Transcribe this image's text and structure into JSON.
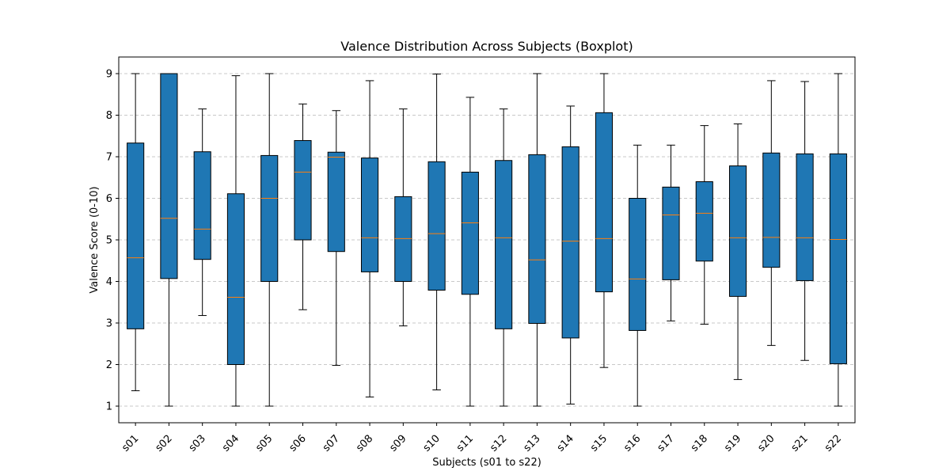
{
  "chart_data": {
    "type": "boxplot",
    "title": "Valence Distribution Across Subjects (Boxplot)",
    "xlabel": "Subjects (s01 to s22)",
    "ylabel": "Valence Score (0-10)",
    "ylim": [
      0.6,
      9.4
    ],
    "yticks": [
      1,
      2,
      3,
      4,
      5,
      6,
      7,
      8,
      9
    ],
    "grid": "y-dashed",
    "colors": {
      "box": "#1f77b4",
      "median": "#ff7f0e",
      "grid": "#c8c8c8"
    },
    "categories": [
      "s01",
      "s02",
      "s03",
      "s04",
      "s05",
      "s06",
      "s07",
      "s08",
      "s09",
      "s10",
      "s11",
      "s12",
      "s13",
      "s14",
      "s15",
      "s16",
      "s17",
      "s18",
      "s19",
      "s20",
      "s21",
      "s22"
    ],
    "boxes": [
      {
        "whislo": 1.37,
        "q1": 2.86,
        "med": 4.57,
        "q3": 7.33,
        "whishi": 9.0
      },
      {
        "whislo": 1.0,
        "q1": 4.07,
        "med": 5.52,
        "q3": 9.0,
        "whishi": 9.0
      },
      {
        "whislo": 3.18,
        "q1": 4.53,
        "med": 5.26,
        "q3": 7.12,
        "whishi": 8.15
      },
      {
        "whislo": 1.0,
        "q1": 2.0,
        "med": 3.62,
        "q3": 6.11,
        "whishi": 8.95
      },
      {
        "whislo": 1.0,
        "q1": 4.0,
        "med": 6.0,
        "q3": 7.03,
        "whishi": 9.0
      },
      {
        "whislo": 3.32,
        "q1": 5.0,
        "med": 6.63,
        "q3": 7.39,
        "whishi": 8.27
      },
      {
        "whislo": 1.98,
        "q1": 4.72,
        "med": 6.99,
        "q3": 7.11,
        "whishi": 8.11
      },
      {
        "whislo": 1.22,
        "q1": 4.23,
        "med": 5.05,
        "q3": 6.97,
        "whishi": 8.83
      },
      {
        "whislo": 2.93,
        "q1": 4.0,
        "med": 5.03,
        "q3": 6.04,
        "whishi": 8.15
      },
      {
        "whislo": 1.39,
        "q1": 3.79,
        "med": 5.15,
        "q3": 6.88,
        "whishi": 8.99
      },
      {
        "whislo": 1.0,
        "q1": 3.69,
        "med": 5.41,
        "q3": 6.63,
        "whishi": 8.43
      },
      {
        "whislo": 1.0,
        "q1": 2.86,
        "med": 5.05,
        "q3": 6.91,
        "whishi": 8.15
      },
      {
        "whislo": 1.0,
        "q1": 2.99,
        "med": 4.52,
        "q3": 7.05,
        "whishi": 9.0
      },
      {
        "whislo": 1.05,
        "q1": 2.64,
        "med": 4.97,
        "q3": 7.24,
        "whishi": 8.22
      },
      {
        "whislo": 1.93,
        "q1": 3.75,
        "med": 5.03,
        "q3": 8.06,
        "whishi": 9.0
      },
      {
        "whislo": 1.0,
        "q1": 2.82,
        "med": 4.06,
        "q3": 6.0,
        "whishi": 7.28
      },
      {
        "whislo": 3.05,
        "q1": 4.04,
        "med": 5.6,
        "q3": 6.27,
        "whishi": 7.28
      },
      {
        "whislo": 2.97,
        "q1": 4.49,
        "med": 5.64,
        "q3": 6.4,
        "whishi": 7.75
      },
      {
        "whislo": 1.64,
        "q1": 3.64,
        "med": 5.05,
        "q3": 6.78,
        "whishi": 7.79
      },
      {
        "whislo": 2.46,
        "q1": 4.34,
        "med": 5.06,
        "q3": 7.09,
        "whishi": 8.83
      },
      {
        "whislo": 2.1,
        "q1": 4.02,
        "med": 5.05,
        "q3": 7.07,
        "whishi": 8.81
      },
      {
        "whislo": 1.0,
        "q1": 2.02,
        "med": 5.01,
        "q3": 7.07,
        "whishi": 9.0
      }
    ]
  }
}
